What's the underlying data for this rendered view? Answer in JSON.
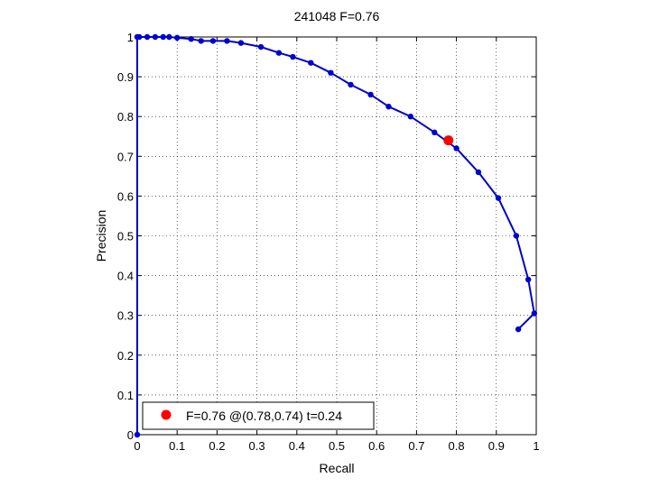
{
  "chart_data": {
    "type": "line",
    "title": "241048 F=0.76",
    "xlabel": "Recall",
    "ylabel": "Precision",
    "xlim": [
      0,
      1
    ],
    "ylim": [
      0,
      1
    ],
    "grid": true,
    "xticks": [
      0,
      0.1,
      0.2,
      0.3,
      0.4,
      0.5,
      0.6,
      0.7,
      0.8,
      0.9,
      1
    ],
    "yticks": [
      0,
      0.1,
      0.2,
      0.3,
      0.4,
      0.5,
      0.6,
      0.7,
      0.8,
      0.9,
      1
    ],
    "xtick_labels": [
      "0",
      "0.1",
      "0.2",
      "0.3",
      "0.4",
      "0.5",
      "0.6",
      "0.7",
      "0.8",
      "0.9",
      "1"
    ],
    "ytick_labels": [
      "0",
      "0.1",
      "0.2",
      "0.3",
      "0.4",
      "0.5",
      "0.6",
      "0.7",
      "0.8",
      "0.9",
      "1"
    ],
    "series": [
      {
        "color": "#0000cc",
        "marker": "dot",
        "points": [
          {
            "x": 0.0,
            "y": 0.0
          },
          {
            "x": 0.0,
            "y": 1.0
          },
          {
            "x": 0.005,
            "y": 1.0
          },
          {
            "x": 0.025,
            "y": 1.0
          },
          {
            "x": 0.045,
            "y": 1.0
          },
          {
            "x": 0.065,
            "y": 1.0
          },
          {
            "x": 0.08,
            "y": 1.0
          },
          {
            "x": 0.1,
            "y": 0.998
          },
          {
            "x": 0.135,
            "y": 0.995
          },
          {
            "x": 0.16,
            "y": 0.99
          },
          {
            "x": 0.19,
            "y": 0.99
          },
          {
            "x": 0.225,
            "y": 0.99
          },
          {
            "x": 0.26,
            "y": 0.985
          },
          {
            "x": 0.31,
            "y": 0.975
          },
          {
            "x": 0.355,
            "y": 0.96
          },
          {
            "x": 0.39,
            "y": 0.95
          },
          {
            "x": 0.435,
            "y": 0.935
          },
          {
            "x": 0.485,
            "y": 0.91
          },
          {
            "x": 0.535,
            "y": 0.88
          },
          {
            "x": 0.585,
            "y": 0.855
          },
          {
            "x": 0.63,
            "y": 0.825
          },
          {
            "x": 0.685,
            "y": 0.8
          },
          {
            "x": 0.745,
            "y": 0.76
          },
          {
            "x": 0.8,
            "y": 0.72
          },
          {
            "x": 0.855,
            "y": 0.66
          },
          {
            "x": 0.905,
            "y": 0.595
          },
          {
            "x": 0.95,
            "y": 0.5
          },
          {
            "x": 0.98,
            "y": 0.39
          },
          {
            "x": 0.995,
            "y": 0.305
          },
          {
            "x": 0.955,
            "y": 0.265
          }
        ]
      }
    ],
    "highlight": {
      "x": 0.78,
      "y": 0.74,
      "color": "#ff0000",
      "label": "F=0.76 @(0.78,0.74) t=0.24"
    },
    "legend": {
      "placement": "bottom-left",
      "entries": [
        "F=0.76 @(0.78,0.74) t=0.24"
      ]
    }
  }
}
